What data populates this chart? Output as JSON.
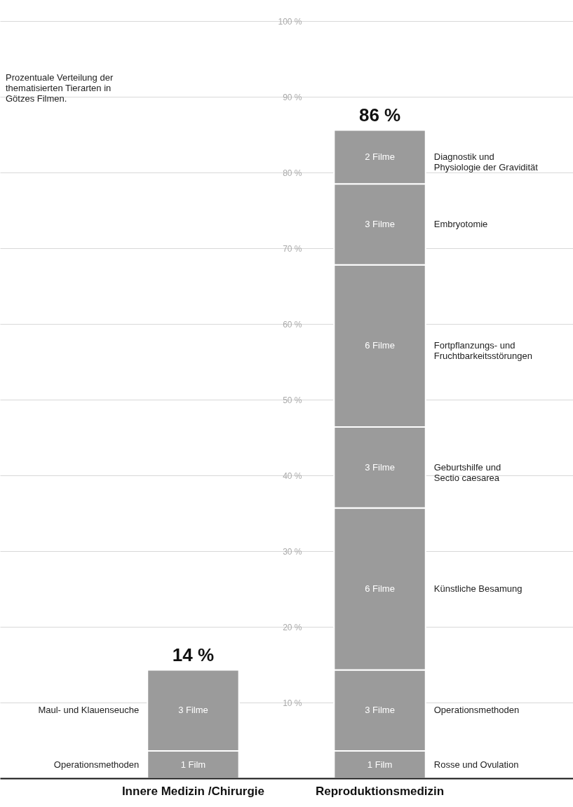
{
  "chart_data": {
    "type": "bar",
    "stacked": true,
    "categories": [
      "Innere Medizin /Chirurgie",
      "Reproduktionsmedizin"
    ],
    "series": [
      {
        "name": "Operationsmethoden",
        "color": "#9b9b9b",
        "values": [
          3.6,
          null
        ]
      },
      {
        "name": "Maul- und Klauenseuche",
        "color": "#9b9b9b",
        "values": [
          10.7,
          null
        ]
      },
      {
        "name": "Rosse und Ovulation",
        "color": "#9b9b9b",
        "values": [
          null,
          3.6
        ]
      },
      {
        "name": "Operationsmethoden",
        "color": "#9b9b9b",
        "values": [
          null,
          10.7
        ]
      },
      {
        "name": "Künstliche Besamung",
        "color": "#9b9b9b",
        "values": [
          null,
          21.4
        ]
      },
      {
        "name": "Geburtshilfe und\nSectio caesarea",
        "color": "#9b9b9b",
        "values": [
          null,
          10.7
        ]
      },
      {
        "name": "Fortpflanzungs- und\nFruchtbarkeitsstörungen",
        "color": "#9b9b9b",
        "values": [
          null,
          21.4
        ]
      },
      {
        "name": "Embryotomie",
        "color": "#9b9b9b",
        "values": [
          null,
          10.7
        ]
      },
      {
        "name": "Diagnostik und\nPhysiologie der Gravidität",
        "color": "#9b9b9b",
        "values": [
          null,
          7.1
        ]
      }
    ],
    "totals": [
      "14 %",
      "86 %"
    ],
    "ylim": [
      0,
      100
    ],
    "yticks": [
      {
        "value": 10,
        "label": "10 %"
      },
      {
        "value": 20,
        "label": "20 %"
      },
      {
        "value": 30,
        "label": "30 %"
      },
      {
        "value": 40,
        "label": "40 %"
      },
      {
        "value": 50,
        "label": "50 %"
      },
      {
        "value": 60,
        "label": "60 %"
      },
      {
        "value": 70,
        "label": "70 %"
      },
      {
        "value": 80,
        "label": "80 %"
      },
      {
        "value": 90,
        "label": "90 %"
      },
      {
        "value": 100,
        "label": "100 %"
      }
    ],
    "grid": "y",
    "annotations": [
      "Prozentuale Verteilung der\nthematisierten Tierarten in\nGötzes Filmen.",
      "1 Film",
      "3 Filme",
      "1 Film",
      "3 Filme",
      "6 Filme",
      "3 Filme",
      "6 Filme",
      "3 Filme",
      "2 Filme"
    ]
  }
}
